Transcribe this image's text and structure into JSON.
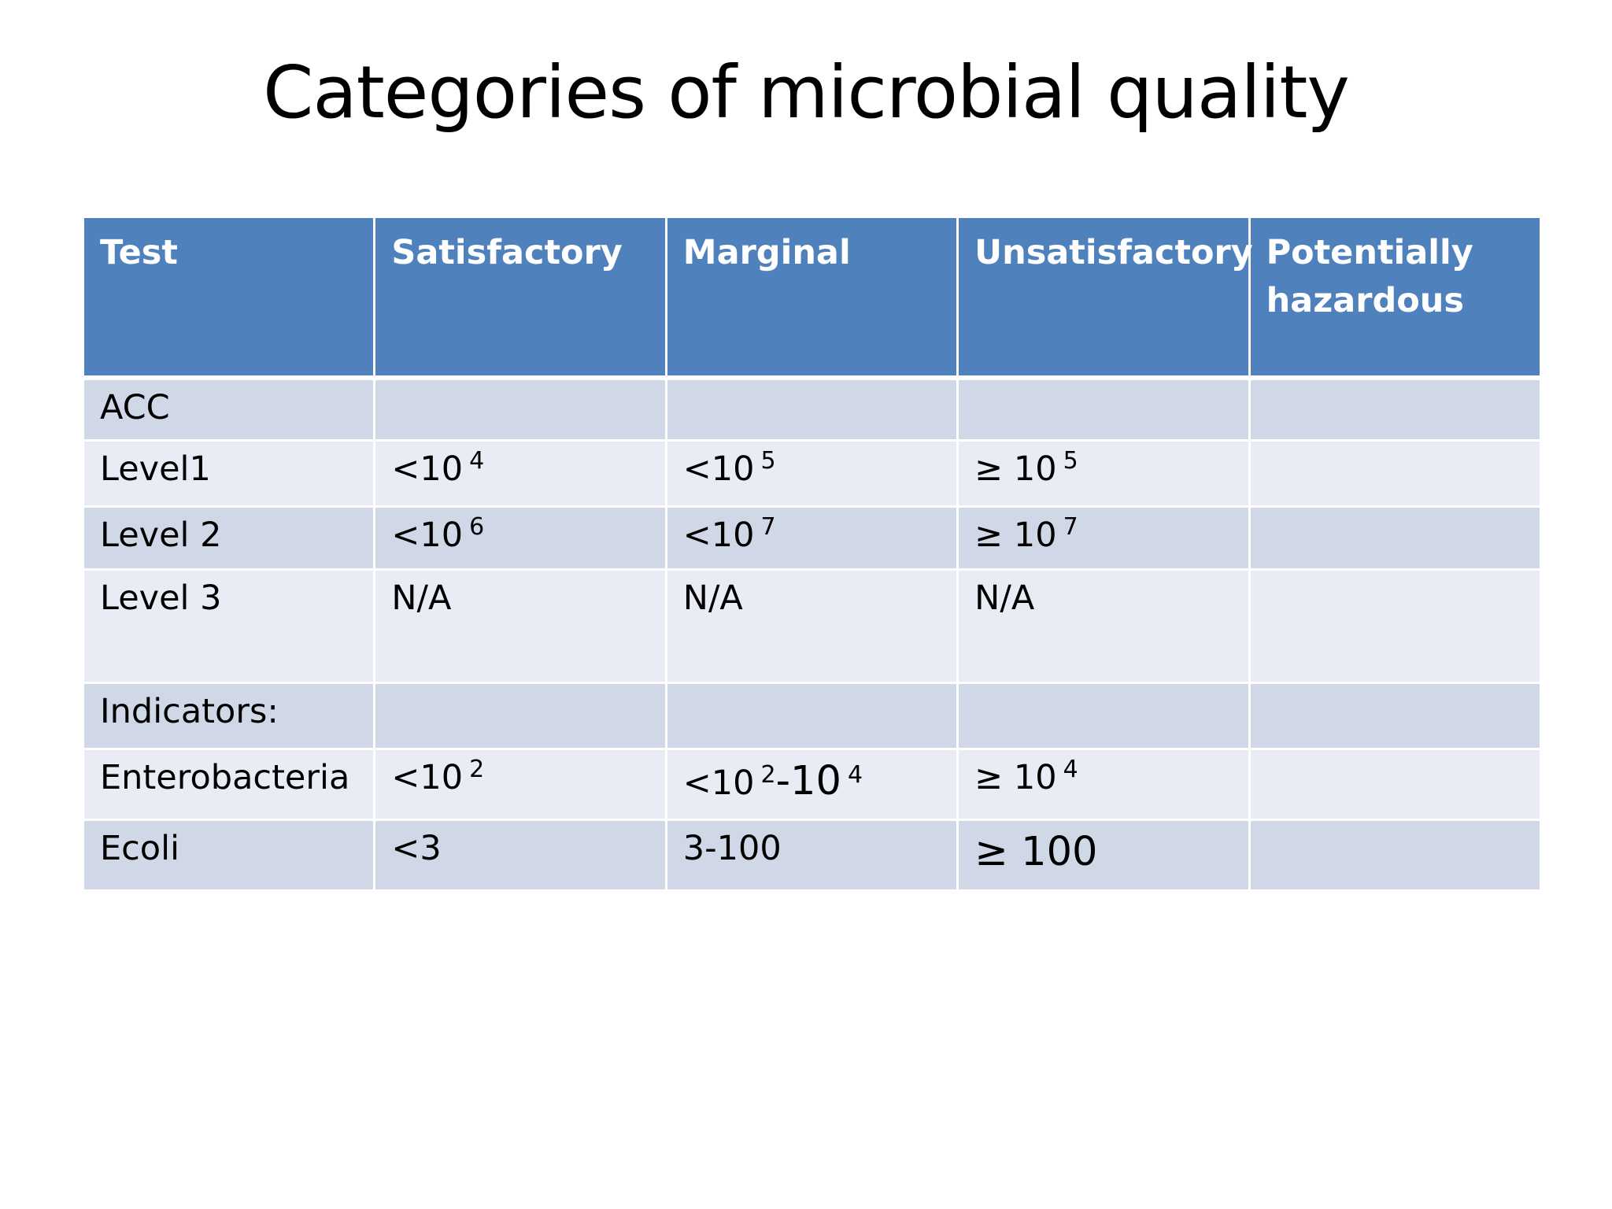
{
  "slide": {
    "title": "Categories of microbial quality"
  },
  "table": {
    "headers": [
      "Test",
      "Satisfactory",
      "Marginal",
      "Unsatisfactory",
      "Potentially hazardous"
    ],
    "rows": [
      {
        "test": "ACC",
        "satisfactory": "",
        "marginal": "",
        "unsatisfactory": "",
        "hazardous": ""
      },
      {
        "test": "Level1",
        "satisfactory": {
          "base": "<10",
          "exp": "4"
        },
        "marginal": {
          "base": "<10",
          "exp": "5"
        },
        "unsatisfactory": {
          "base": "≥ 10",
          "exp": "5"
        },
        "hazardous": ""
      },
      {
        "test": "Level 2",
        "satisfactory": {
          "base": "<10",
          "exp": "6"
        },
        "marginal": {
          "base": "<10",
          "exp": "7"
        },
        "unsatisfactory": {
          "base": "≥ 10",
          "exp": "7"
        },
        "hazardous": ""
      },
      {
        "test": "Level 3",
        "satisfactory": "N/A",
        "marginal": "N/A",
        "unsatisfactory": "N/A",
        "hazardous": ""
      },
      {
        "test": "Indicators:",
        "satisfactory": "",
        "marginal": "",
        "unsatisfactory": "",
        "hazardous": ""
      },
      {
        "test": "Enterobacteria",
        "satisfactory": {
          "base": "<10",
          "exp": "2"
        },
        "marginal": {
          "base1": "<10",
          "exp1": "2",
          "mid": "-10",
          "exp2": "4"
        },
        "unsatisfactory": {
          "base": "≥ 10",
          "exp": "4"
        },
        "hazardous": ""
      },
      {
        "test": "Ecoli",
        "satisfactory": "<3",
        "marginal": "3-100",
        "unsatisfactory": "≥ 100",
        "hazardous": ""
      }
    ]
  },
  "colors": {
    "header_bg": "#4f81bd",
    "row_dark": "#d0d8e8",
    "row_light": "#e9ebf5"
  }
}
